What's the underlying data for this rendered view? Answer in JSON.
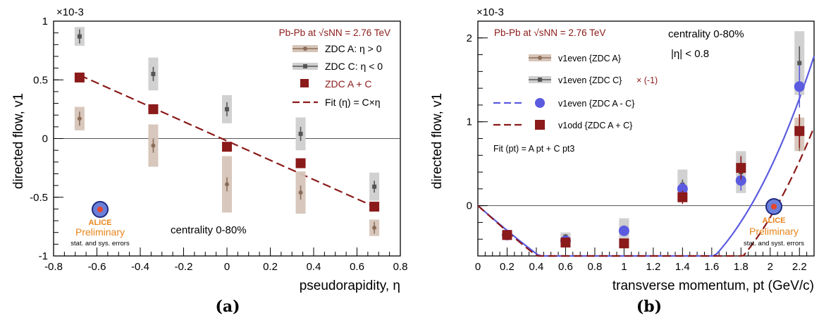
{
  "figure": {
    "panel_a_caption": "(a)",
    "panel_b_caption": "(b)"
  },
  "chart_data": [
    {
      "type": "scatter",
      "panel": "a",
      "xlabel": "pseudorapidity, η",
      "ylabel": "directed flow, v1",
      "y_multiplier": "×10-3",
      "xlim": [
        -0.8,
        0.8
      ],
      "ylim": [
        -1,
        1
      ],
      "x_ticks": [
        -0.8,
        -0.6,
        -0.4,
        -0.2,
        0,
        0.2,
        0.4,
        0.6,
        0.8
      ],
      "x_tick_labels": [
        "-0.8",
        "-0.6",
        "-0.4",
        "-0.2",
        "0",
        "0.2",
        "0.4",
        "0.6",
        "0.8"
      ],
      "y_ticks": [
        -1,
        -0.5,
        0,
        0.5,
        1
      ],
      "y_tick_labels": [
        "-1",
        "-0.5",
        "0",
        "0.5",
        "1"
      ],
      "system_label": "Pb-Pb at √sNN = 2.76 TeV",
      "annotation": "centrality 0-80%",
      "logo": {
        "name": "ALICE",
        "status": "Preliminary",
        "note": "stat. and sys. errors"
      },
      "legend_position": "top-right",
      "series": [
        {
          "name": "ZDC A: η > 0",
          "color": "#8b6e5a",
          "box_color": "#d6c4b8",
          "marker": "dot",
          "x": [
            -0.68,
            -0.34,
            0.0,
            0.34,
            0.68
          ],
          "y": [
            0.17,
            -0.06,
            -0.39,
            -0.46,
            -0.76
          ],
          "stat_err": [
            0.06,
            0.06,
            0.06,
            0.06,
            0.05
          ],
          "sys_err": [
            0.1,
            0.18,
            0.24,
            0.18,
            0.07
          ]
        },
        {
          "name": "ZDC C: η < 0",
          "color": "#555555",
          "box_color": "#cfcfcf",
          "marker": "square-small",
          "x": [
            -0.68,
            -0.34,
            0.0,
            0.34,
            0.68
          ],
          "y": [
            0.87,
            0.55,
            0.25,
            0.04,
            -0.41
          ],
          "stat_err": [
            0.06,
            0.06,
            0.06,
            0.06,
            0.05
          ],
          "sys_err": [
            0.08,
            0.14,
            0.12,
            0.14,
            0.12
          ]
        },
        {
          "name": "ZDC A + C",
          "color": "#8b1a1a",
          "marker": "square",
          "x": [
            -0.68,
            -0.34,
            0.0,
            0.34,
            0.68
          ],
          "y": [
            0.52,
            0.25,
            -0.07,
            -0.21,
            -0.58
          ],
          "stat_err": [
            0.04,
            0.04,
            0.03,
            0.03,
            0.03
          ]
        }
      ],
      "fit": {
        "name": "Fit (η) = C×η",
        "color": "#8b1a1a",
        "x": [
          -0.68,
          0.68
        ],
        "y": [
          0.54,
          -0.58
        ]
      }
    },
    {
      "type": "scatter",
      "panel": "b",
      "xlabel": "transverse momentum, pt (GeV/c)",
      "ylabel": "directed flow, v1",
      "y_multiplier": "×10-3",
      "xlim": [
        0,
        2.3
      ],
      "ylim": [
        -0.6,
        2.2
      ],
      "x_ticks": [
        0,
        0.2,
        0.4,
        0.6,
        0.8,
        1,
        1.2,
        1.4,
        1.6,
        1.8,
        2,
        2.2
      ],
      "x_tick_labels": [
        "0",
        "0.2",
        "0.4",
        "0.6",
        "0.8",
        "1",
        "1.2",
        "1.4",
        "1.6",
        "1.8",
        "2",
        "2.2"
      ],
      "y_ticks": [
        0,
        1,
        2
      ],
      "y_tick_labels": [
        "0",
        "1",
        "2"
      ],
      "system_label": "Pb-Pb at √sNN = 2.76 TeV",
      "annotation_1": "centrality 0-80%",
      "annotation_2": "|η| < 0.8",
      "fit_formula": "Fit (pt) = A pt + C pt3",
      "logo": {
        "name": "ALICE",
        "status": "Preliminary",
        "note": "stat. and syst. errors"
      },
      "legend_position": "top-left",
      "series": [
        {
          "name": "v1even {ZDC A}",
          "color": "#8b6e5a",
          "box_color": "#d6c4b8",
          "marker": "dot",
          "x": [
            0.2,
            0.6,
            1.0,
            1.4,
            1.8,
            2.2
          ],
          "y": [
            -0.35,
            -0.4,
            -0.25,
            0.15,
            0.5,
            0.85
          ],
          "stat_err": [
            0.04,
            0.03,
            0.04,
            0.06,
            0.1,
            0.2
          ],
          "sys_err": [
            0.06,
            0.05,
            0.08,
            0.08,
            0.12,
            0.2
          ]
        },
        {
          "name": "v1even {ZDC C}",
          "name_suffix": "× (-1)",
          "color": "#555555",
          "box_color": "#cfcfcf",
          "marker": "square-small",
          "x": [
            0.2,
            0.6,
            1.0,
            1.4,
            1.8,
            2.2
          ],
          "y": [
            -0.35,
            -0.37,
            -0.3,
            0.25,
            0.4,
            1.7
          ],
          "stat_err": [
            0.04,
            0.03,
            0.04,
            0.06,
            0.1,
            0.2
          ],
          "sys_err": [
            0.06,
            0.05,
            0.15,
            0.18,
            0.25,
            0.38
          ]
        },
        {
          "name": "v1even {ZDC A - C}",
          "color": "#5b5be0",
          "marker": "circle",
          "x": [
            0.2,
            0.6,
            1.0,
            1.4,
            1.8,
            2.2
          ],
          "y": [
            -0.35,
            -0.42,
            -0.3,
            0.2,
            0.3,
            1.42
          ],
          "stat_err": [
            0.05,
            0.04,
            0.05,
            0.08,
            0.12,
            0.25
          ]
        },
        {
          "name": "v1odd {ZDC A + C}",
          "color": "#8b1a1a",
          "marker": "square",
          "x": [
            0.2,
            0.6,
            1.0,
            1.4,
            1.8,
            2.2
          ],
          "y": [
            -0.35,
            -0.44,
            -0.45,
            0.1,
            0.45,
            0.89
          ],
          "stat_err": [
            0.04,
            0.03,
            0.04,
            0.08,
            0.14,
            0.2
          ]
        }
      ],
      "fits": [
        {
          "for": "v1even {ZDC A - C}",
          "color": "#5b5be0",
          "A": -1.5,
          "C": 0.43
        },
        {
          "for": "v1odd {ZDC A + C}",
          "color": "#8b1a1a",
          "A": -1.55,
          "C": 0.37
        }
      ]
    }
  ]
}
